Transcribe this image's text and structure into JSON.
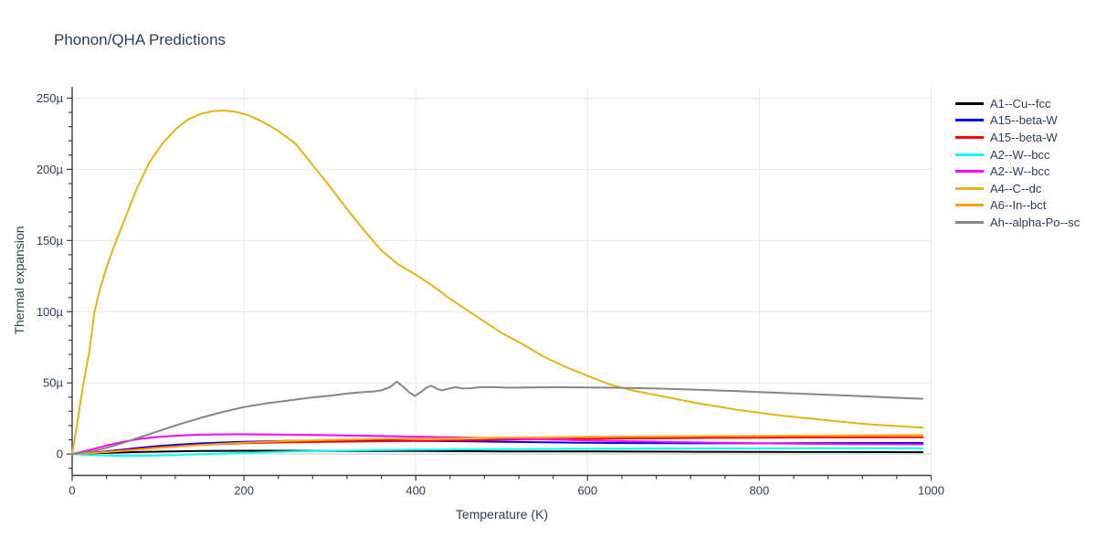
{
  "chart_data": {
    "type": "line",
    "title": "Phonon/QHA Predictions",
    "xlabel": "Temperature (K)",
    "ylabel": "Thermal expansion",
    "x_range": [
      0,
      1000
    ],
    "y_range": [
      -15,
      258
    ],
    "grid": true,
    "legend_position": "right",
    "x_ticks": {
      "major": [
        0,
        200,
        400,
        600,
        800,
        1000
      ],
      "labels": [
        "0",
        "200",
        "400",
        "600",
        "800",
        "1000"
      ],
      "minor_step": 40
    },
    "y_ticks": {
      "major": [
        0,
        50,
        100,
        150,
        200,
        250
      ],
      "labels": [
        "0",
        "50µ",
        "100µ",
        "150µ",
        "200µ",
        "250µ"
      ],
      "minor_step": 10,
      "minor_min": -10
    },
    "colors": {
      "title_text": "#2a3f5f",
      "tick_label": "#2a3f5f",
      "axis_line": "#30404d",
      "gridline": "#e9e9e9",
      "zeroline": "#d9d9d9",
      "background": "#ffffff"
    },
    "series": [
      {
        "name": "A1--Cu--fcc",
        "color": "#000000",
        "points": [
          [
            0,
            0
          ],
          [
            25,
            0.5
          ],
          [
            50,
            1.0
          ],
          [
            75,
            1.4
          ],
          [
            100,
            1.7
          ],
          [
            150,
            2.1
          ],
          [
            200,
            2.3
          ],
          [
            250,
            2.3
          ],
          [
            300,
            2.2
          ],
          [
            400,
            2.1
          ],
          [
            500,
            1.9
          ],
          [
            600,
            1.8
          ],
          [
            700,
            1.7
          ],
          [
            800,
            1.5
          ],
          [
            900,
            1.4
          ],
          [
            990,
            1.3
          ]
        ]
      },
      {
        "name": "A15--beta-W",
        "color": "#0000ff",
        "points": [
          [
            0,
            0
          ],
          [
            25,
            1.0
          ],
          [
            50,
            2.5
          ],
          [
            75,
            4.2
          ],
          [
            100,
            5.6
          ],
          [
            125,
            6.7
          ],
          [
            150,
            7.5
          ],
          [
            175,
            8.1
          ],
          [
            200,
            8.6
          ],
          [
            250,
            9.2
          ],
          [
            300,
            9.5
          ],
          [
            350,
            9.5
          ],
          [
            400,
            9.3
          ],
          [
            450,
            9.0
          ],
          [
            500,
            8.6
          ],
          [
            550,
            8.2
          ],
          [
            600,
            7.9
          ],
          [
            650,
            7.7
          ],
          [
            700,
            7.6
          ],
          [
            750,
            7.5
          ],
          [
            800,
            7.5
          ],
          [
            850,
            7.6
          ],
          [
            900,
            7.7
          ],
          [
            950,
            7.8
          ],
          [
            990,
            7.8
          ]
        ]
      },
      {
        "name": "A15--beta-W",
        "color": "#ff0000",
        "points": [
          [
            0,
            0
          ],
          [
            25,
            0.8
          ],
          [
            50,
            2.0
          ],
          [
            75,
            3.4
          ],
          [
            100,
            4.7
          ],
          [
            125,
            5.7
          ],
          [
            150,
            6.5
          ],
          [
            175,
            7.1
          ],
          [
            200,
            7.6
          ],
          [
            250,
            8.2
          ],
          [
            300,
            8.6
          ],
          [
            350,
            8.9
          ],
          [
            400,
            9.2
          ],
          [
            450,
            9.6
          ],
          [
            500,
            10.0
          ],
          [
            550,
            10.4
          ],
          [
            600,
            10.7
          ],
          [
            650,
            11.0
          ],
          [
            700,
            11.2
          ],
          [
            750,
            11.4
          ],
          [
            800,
            11.5
          ],
          [
            850,
            11.6
          ],
          [
            900,
            11.7
          ],
          [
            950,
            11.8
          ],
          [
            990,
            11.8
          ]
        ]
      },
      {
        "name": "A2--W--bcc",
        "color": "#00ffff",
        "points": [
          [
            0,
            0
          ],
          [
            20,
            -0.7
          ],
          [
            40,
            -1.1
          ],
          [
            60,
            -1.3
          ],
          [
            80,
            -1.2
          ],
          [
            100,
            -1.0
          ],
          [
            125,
            -0.6
          ],
          [
            150,
            -0.1
          ],
          [
            175,
            0.4
          ],
          [
            200,
            0.9
          ],
          [
            250,
            1.7
          ],
          [
            300,
            2.3
          ],
          [
            350,
            2.7
          ],
          [
            400,
            3.0
          ],
          [
            450,
            3.2
          ],
          [
            500,
            3.4
          ],
          [
            550,
            3.6
          ],
          [
            600,
            3.7
          ],
          [
            700,
            3.9
          ],
          [
            800,
            4.0
          ],
          [
            900,
            4.1
          ],
          [
            990,
            4.1
          ]
        ]
      },
      {
        "name": "A2--W--bcc",
        "color": "#ff00ff",
        "points": [
          [
            0,
            0
          ],
          [
            20,
            2.8
          ],
          [
            40,
            6.0
          ],
          [
            60,
            8.7
          ],
          [
            80,
            10.7
          ],
          [
            100,
            12.0
          ],
          [
            125,
            13.0
          ],
          [
            150,
            13.6
          ],
          [
            175,
            13.8
          ],
          [
            200,
            13.9
          ],
          [
            250,
            13.6
          ],
          [
            300,
            13.2
          ],
          [
            350,
            12.7
          ],
          [
            400,
            12.2
          ],
          [
            450,
            11.7
          ],
          [
            500,
            11.0
          ],
          [
            550,
            10.3
          ],
          [
            600,
            9.6
          ],
          [
            650,
            9.0
          ],
          [
            700,
            8.4
          ],
          [
            750,
            7.9
          ],
          [
            800,
            7.5
          ],
          [
            850,
            7.2
          ],
          [
            900,
            7.0
          ],
          [
            950,
            6.9
          ],
          [
            990,
            6.8
          ]
        ]
      },
      {
        "name": "A4--C--dc",
        "color": "#e3b512",
        "points": [
          [
            0,
            0
          ],
          [
            5,
            18
          ],
          [
            10,
            38
          ],
          [
            15,
            56
          ],
          [
            20,
            72
          ],
          [
            26,
            100
          ],
          [
            32,
            115
          ],
          [
            40,
            131
          ],
          [
            50,
            148
          ],
          [
            60,
            163
          ],
          [
            75,
            186
          ],
          [
            90,
            205
          ],
          [
            105,
            218
          ],
          [
            120,
            228
          ],
          [
            135,
            235
          ],
          [
            150,
            239
          ],
          [
            165,
            241
          ],
          [
            175,
            241.3
          ],
          [
            190,
            240.5
          ],
          [
            205,
            238
          ],
          [
            220,
            234
          ],
          [
            240,
            227
          ],
          [
            260,
            218
          ],
          [
            280,
            203
          ],
          [
            300,
            188
          ],
          [
            320,
            172
          ],
          [
            340,
            157
          ],
          [
            360,
            143
          ],
          [
            380,
            133
          ],
          [
            400,
            126
          ],
          [
            420,
            118
          ],
          [
            440,
            109
          ],
          [
            460,
            101
          ],
          [
            480,
            93
          ],
          [
            500,
            85
          ],
          [
            525,
            77
          ],
          [
            550,
            68
          ],
          [
            575,
            61
          ],
          [
            600,
            55
          ],
          [
            625,
            49
          ],
          [
            650,
            45
          ],
          [
            675,
            42
          ],
          [
            700,
            39
          ],
          [
            725,
            36
          ],
          [
            750,
            33.5
          ],
          [
            775,
            31
          ],
          [
            800,
            29
          ],
          [
            825,
            27
          ],
          [
            850,
            25.5
          ],
          [
            875,
            24
          ],
          [
            900,
            22.5
          ],
          [
            925,
            21
          ],
          [
            950,
            20
          ],
          [
            990,
            18.5
          ]
        ]
      },
      {
        "name": "A6--In--bct",
        "color": "#ffa200",
        "points": [
          [
            0,
            0
          ],
          [
            25,
            0.7
          ],
          [
            50,
            1.8
          ],
          [
            75,
            3.0
          ],
          [
            100,
            4.3
          ],
          [
            125,
            5.4
          ],
          [
            150,
            6.4
          ],
          [
            175,
            7.2
          ],
          [
            200,
            8.0
          ],
          [
            250,
            9.1
          ],
          [
            300,
            9.9
          ],
          [
            350,
            10.5
          ],
          [
            400,
            10.9
          ],
          [
            450,
            11.2
          ],
          [
            500,
            11.5
          ],
          [
            550,
            11.8
          ],
          [
            600,
            12.0
          ],
          [
            650,
            12.2
          ],
          [
            700,
            12.4
          ],
          [
            750,
            12.6
          ],
          [
            800,
            12.8
          ],
          [
            850,
            12.9
          ],
          [
            900,
            13.1
          ],
          [
            950,
            13.2
          ],
          [
            990,
            13.3
          ]
        ]
      },
      {
        "name": "Ah--alpha-Po--sc",
        "color": "#868686",
        "points": [
          [
            0,
            0
          ],
          [
            25,
            2
          ],
          [
            50,
            6
          ],
          [
            75,
            11
          ],
          [
            100,
            16
          ],
          [
            125,
            21
          ],
          [
            150,
            25.5
          ],
          [
            175,
            29.5
          ],
          [
            200,
            33
          ],
          [
            225,
            35.5
          ],
          [
            250,
            37.5
          ],
          [
            275,
            39.5
          ],
          [
            300,
            41
          ],
          [
            320,
            42.5
          ],
          [
            340,
            43.5
          ],
          [
            352,
            44
          ],
          [
            360,
            44.8
          ],
          [
            370,
            47
          ],
          [
            378,
            50.8
          ],
          [
            386,
            47
          ],
          [
            393,
            43
          ],
          [
            399,
            40.8
          ],
          [
            406,
            43.5
          ],
          [
            412,
            46.5
          ],
          [
            418,
            48
          ],
          [
            424,
            46
          ],
          [
            430,
            44.8
          ],
          [
            438,
            45.8
          ],
          [
            446,
            47
          ],
          [
            455,
            46
          ],
          [
            465,
            46.3
          ],
          [
            475,
            47
          ],
          [
            490,
            47
          ],
          [
            510,
            46.6
          ],
          [
            530,
            46.8
          ],
          [
            560,
            46.9
          ],
          [
            600,
            46.8
          ],
          [
            640,
            46.5
          ],
          [
            680,
            46
          ],
          [
            720,
            45.3
          ],
          [
            760,
            44.5
          ],
          [
            800,
            43.6
          ],
          [
            840,
            42.6
          ],
          [
            880,
            41.6
          ],
          [
            920,
            40.6
          ],
          [
            955,
            39.6
          ],
          [
            990,
            38.8
          ]
        ]
      }
    ]
  }
}
